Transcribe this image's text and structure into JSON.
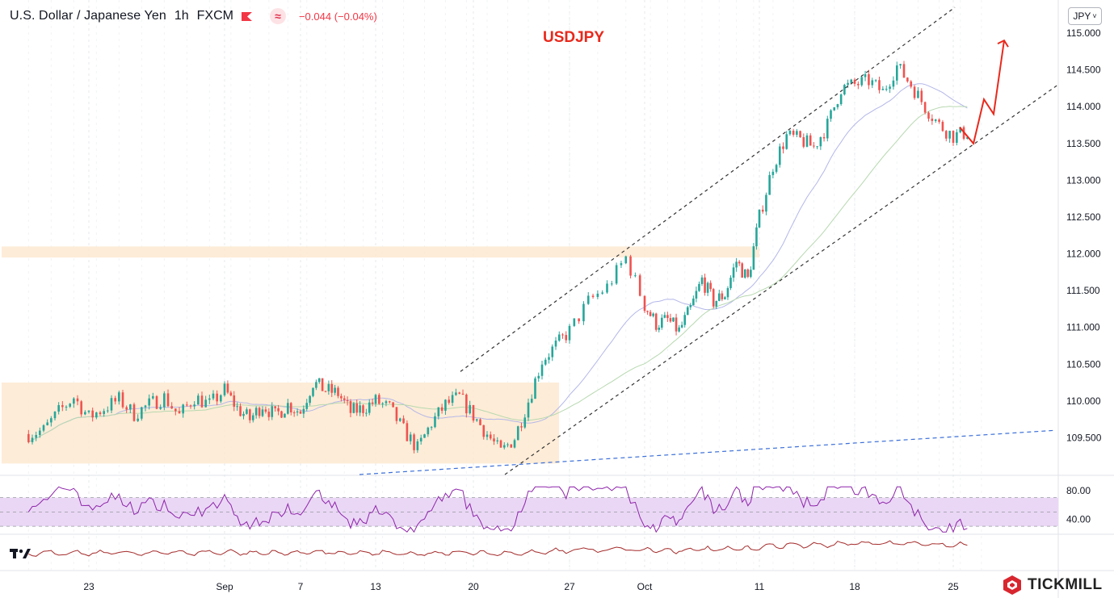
{
  "header": {
    "symbol_title": "U.S. Dollar / Japanese Yen",
    "interval": "1h",
    "exchange": "FXCM",
    "change_text": "−0.044 (−0.04%)",
    "flag_icon": "flag-icon",
    "indicator_icon": "wave-icon",
    "indicator_glyph": "≈"
  },
  "annotation": {
    "label": "USDJPY",
    "color": "#e8291c"
  },
  "currency_button": {
    "label": "JPY",
    "chevron": "˅"
  },
  "brand": {
    "name": "TICKMILL",
    "logo_icon": "tickmill-logo-icon"
  },
  "colors": {
    "up": "#26a69a",
    "down": "#ef5350",
    "zone": "#fde9d0",
    "ma_fast": "#b3b7e8",
    "ma_slow": "#b7d8b0",
    "channel": "#333333",
    "support": "#3b6fd8",
    "rsi_line": "#8e24aa",
    "rsi_band": "#ead7f5",
    "lower_line": "#a52a2a",
    "projection": "#e8291c"
  },
  "chart_data": {
    "type": "candlestick",
    "title": "U.S. Dollar / Japanese Yen",
    "interval": "1h",
    "y_axis": {
      "ticks": [
        "115.000",
        "114.500",
        "114.000",
        "113.500",
        "113.000",
        "112.500",
        "112.000",
        "111.500",
        "111.000",
        "110.500",
        "110.000",
        "109.500"
      ],
      "ylim": [
        109.0,
        115.45
      ]
    },
    "x_axis": {
      "ticks": [
        "23",
        "Sep",
        "7",
        "13",
        "20",
        "27",
        "Oct",
        "11",
        "18",
        "25"
      ]
    },
    "price_path": [
      [
        "Aug 19",
        109.55
      ],
      [
        "Aug 20",
        109.6
      ],
      [
        "Aug 21",
        109.85
      ],
      [
        "Aug 22",
        110.05
      ],
      [
        "Aug 23",
        109.78
      ],
      [
        "Aug 24",
        109.9
      ],
      [
        "Aug 25",
        110.02
      ],
      [
        "Aug 26",
        109.82
      ],
      [
        "Aug 27",
        109.95
      ],
      [
        "Aug 28",
        110.05
      ],
      [
        "Aug 29",
        109.8
      ],
      [
        "Aug 30",
        110.05
      ],
      [
        "Aug 31",
        109.95
      ],
      [
        "Sep 1",
        110.15
      ],
      [
        "Sep 2",
        109.9
      ],
      [
        "Sep 3",
        109.75
      ],
      [
        "Sep 4",
        109.95
      ],
      [
        "Sep 5",
        109.8
      ],
      [
        "Sep 6",
        109.95
      ],
      [
        "Sep 7",
        109.85
      ],
      [
        "Sep 8",
        110.25
      ],
      [
        "Sep 9",
        110.15
      ],
      [
        "Sep 10",
        110.1
      ],
      [
        "Sep 11",
        109.85
      ],
      [
        "Sep 12",
        109.9
      ],
      [
        "Sep 13",
        110.0
      ],
      [
        "Sep 14",
        109.9
      ],
      [
        "Sep 15",
        109.6
      ],
      [
        "Sep 16",
        109.35
      ],
      [
        "Sep 17",
        109.7
      ],
      [
        "Sep 18",
        109.95
      ],
      [
        "Sep 19",
        110.05
      ],
      [
        "Sep 20",
        109.8
      ],
      [
        "Sep 21",
        109.55
      ],
      [
        "Sep 22",
        109.3
      ],
      [
        "Sep 23",
        109.5
      ],
      [
        "Sep 24",
        110.0
      ],
      [
        "Sep 25",
        110.55
      ],
      [
        "Sep 26",
        110.75
      ],
      [
        "Sep 27",
        110.95
      ],
      [
        "Sep 28",
        111.35
      ],
      [
        "Sep 29",
        111.55
      ],
      [
        "Sep 30",
        111.95
      ],
      [
        "Oct 1",
        111.3
      ],
      [
        "Oct 2",
        111.05
      ],
      [
        "Oct 3",
        111.1
      ],
      [
        "Oct 4",
        110.95
      ],
      [
        "Oct 5",
        111.25
      ],
      [
        "Oct 6",
        111.65
      ],
      [
        "Oct 7",
        111.35
      ],
      [
        "Oct 8",
        111.45
      ],
      [
        "Oct 9",
        111.9
      ],
      [
        "Oct 10",
        111.65
      ],
      [
        "Oct 11",
        112.5
      ],
      [
        "Oct 12",
        113.2
      ],
      [
        "Oct 13",
        113.6
      ],
      [
        "Oct 14",
        113.55
      ],
      [
        "Oct 15",
        113.45
      ],
      [
        "Oct 16",
        113.75
      ],
      [
        "Oct 17",
        114.25
      ],
      [
        "Oct 18",
        114.3
      ],
      [
        "Oct 19",
        114.35
      ],
      [
        "Oct 20",
        114.2
      ],
      [
        "Oct 21",
        114.55
      ],
      [
        "Oct 22",
        114.3
      ],
      [
        "Oct 23",
        114.0
      ],
      [
        "Oct 24",
        113.75
      ],
      [
        "Oct 25",
        113.6
      ],
      [
        "Oct 26",
        113.65
      ]
    ],
    "zones": [
      {
        "label": "resistance zone",
        "ymin": 111.95,
        "ymax": 112.1
      },
      {
        "label": "range zone",
        "ymin": 109.15,
        "ymax": 110.25
      }
    ],
    "projection": [
      113.5,
      114.1,
      113.9,
      114.9
    ],
    "rsi": {
      "ticks": [
        "80.00",
        "40.00"
      ],
      "ylim": [
        20,
        100
      ]
    }
  }
}
